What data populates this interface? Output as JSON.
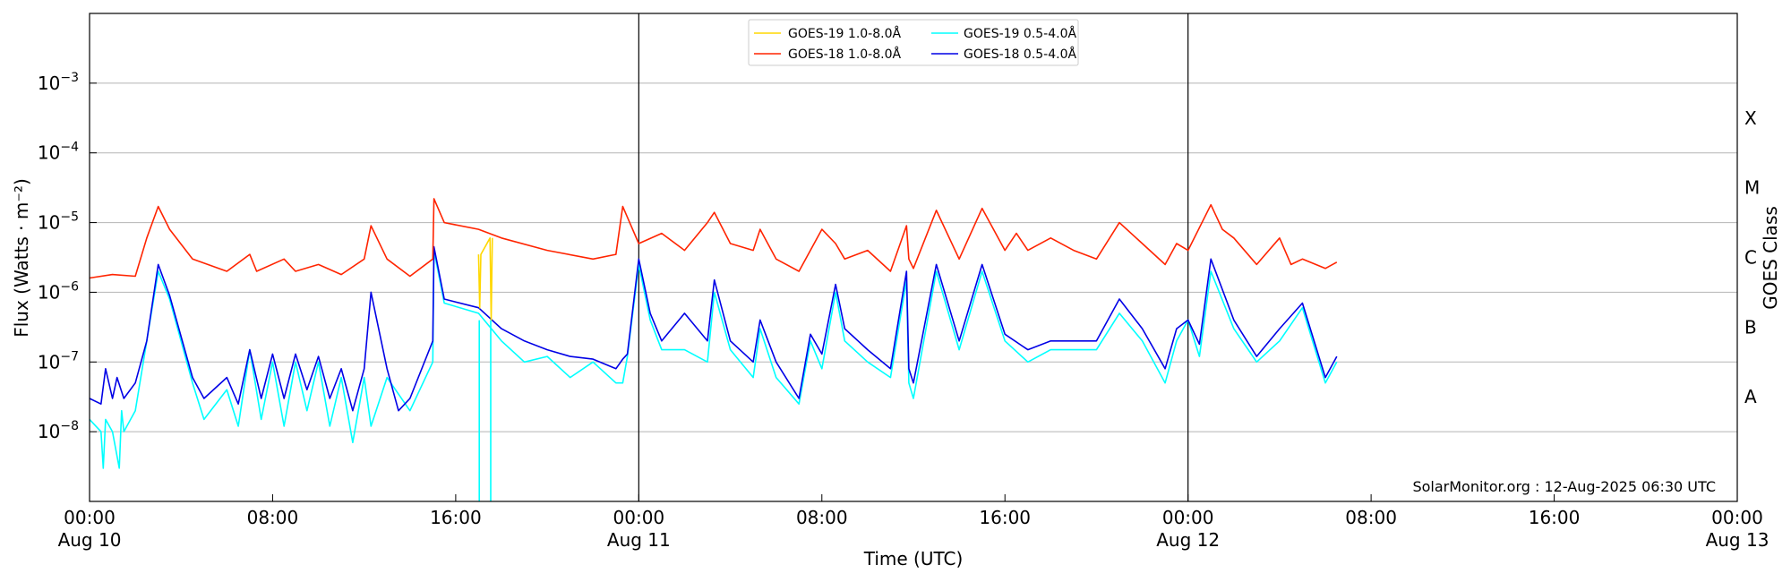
{
  "chart_data": {
    "type": "line",
    "title": "",
    "xlabel": "Time (UTC)",
    "ylabel": "Flux (Watts · m⁻²)",
    "y2label": "GOES Class",
    "yscale": "log",
    "ylim_log10": [
      -9,
      -2
    ],
    "xlim_hours": [
      0,
      72
    ],
    "x_unit": "hours since Aug 10 00:00 UTC",
    "x_ticks": [
      {
        "hour": 0,
        "time": "00:00",
        "date": "Aug 10"
      },
      {
        "hour": 8,
        "time": "08:00",
        "date": ""
      },
      {
        "hour": 16,
        "time": "16:00",
        "date": ""
      },
      {
        "hour": 24,
        "time": "00:00",
        "date": "Aug 11"
      },
      {
        "hour": 32,
        "time": "08:00",
        "date": ""
      },
      {
        "hour": 40,
        "time": "16:00",
        "date": ""
      },
      {
        "hour": 48,
        "time": "00:00",
        "date": "Aug 12"
      },
      {
        "hour": 56,
        "time": "08:00",
        "date": ""
      },
      {
        "hour": 64,
        "time": "16:00",
        "date": ""
      },
      {
        "hour": 72,
        "time": "00:00",
        "date": "Aug 13"
      }
    ],
    "y_ticks": [
      {
        "exp": -8,
        "label": "10",
        "sup": "−8"
      },
      {
        "exp": -7,
        "label": "10",
        "sup": "−7"
      },
      {
        "exp": -6,
        "label": "10",
        "sup": "−6"
      },
      {
        "exp": -5,
        "label": "10",
        "sup": "−5"
      },
      {
        "exp": -4,
        "label": "10",
        "sup": "−4"
      },
      {
        "exp": -3,
        "label": "10",
        "sup": "−3"
      }
    ],
    "class_ticks": [
      {
        "label": "A",
        "exp": -7.5
      },
      {
        "label": "B",
        "exp": -6.5
      },
      {
        "label": "C",
        "exp": -5.5
      },
      {
        "label": "M",
        "exp": -4.5
      },
      {
        "label": "X",
        "exp": -3.5
      }
    ],
    "day_lines_hours": [
      24,
      48
    ],
    "legend": {
      "position": "top-center"
    },
    "series": [
      {
        "name": "GOES-19 1.0-8.0Å",
        "color": "#FFD700",
        "x": [
          17.0,
          17.05,
          17.1,
          17.5,
          17.55,
          17.6
        ],
        "y": [
          3.5e-06,
          6e-07,
          3.5e-06,
          6e-06,
          4e-07,
          6e-06
        ]
      },
      {
        "name": "GOES-18 1.0-8.0Å",
        "color": "#FF2400",
        "x": [
          0.0,
          1.0,
          2.0,
          2.5,
          3.0,
          3.5,
          4.5,
          6.0,
          7.0,
          7.3,
          8.5,
          9.0,
          10.0,
          11.0,
          12.0,
          12.3,
          13.0,
          14.0,
          15.0,
          15.05,
          15.5,
          17.0,
          18.0,
          20.0,
          22.0,
          23.0,
          23.3,
          24.0,
          25.0,
          26.0,
          27.0,
          27.3,
          28.0,
          29.0,
          29.3,
          30.0,
          31.0,
          32.0,
          32.6,
          33.0,
          34.0,
          35.0,
          35.7,
          35.8,
          36.0,
          37.0,
          38.0,
          39.0,
          40.0,
          40.5,
          41.0,
          42.0,
          43.0,
          44.0,
          45.0,
          46.0,
          47.0,
          47.5,
          48.0,
          49.0,
          49.5,
          50.0,
          51.0,
          52.0,
          52.5,
          53.0,
          54.0,
          54.5
        ],
        "y": [
          1.6e-06,
          1.8e-06,
          1.7e-06,
          6e-06,
          1.7e-05,
          8e-06,
          3e-06,
          2e-06,
          3.5e-06,
          2e-06,
          3e-06,
          2e-06,
          2.5e-06,
          1.8e-06,
          3e-06,
          9e-06,
          3e-06,
          1.7e-06,
          3e-06,
          2.2e-05,
          1e-05,
          8e-06,
          6e-06,
          4e-06,
          3e-06,
          3.5e-06,
          1.7e-05,
          5e-06,
          7e-06,
          4e-06,
          1e-05,
          1.4e-05,
          5e-06,
          4e-06,
          8e-06,
          3e-06,
          2e-06,
          8e-06,
          5e-06,
          3e-06,
          4e-06,
          2e-06,
          9e-06,
          3e-06,
          2.2e-06,
          1.5e-05,
          3e-06,
          1.6e-05,
          4e-06,
          7e-06,
          4e-06,
          6e-06,
          4e-06,
          3e-06,
          1e-05,
          5e-06,
          2.5e-06,
          5e-06,
          4e-06,
          1.8e-05,
          8e-06,
          6e-06,
          2.5e-06,
          6e-06,
          2.5e-06,
          3e-06,
          2.2e-06,
          2.7e-06
        ]
      },
      {
        "name": "GOES-19 0.5-4.0Å",
        "color": "#00FFFF",
        "x": [
          0.0,
          0.5,
          0.6,
          0.7,
          1.0,
          1.3,
          1.4,
          1.5,
          2.0,
          2.5,
          3.0,
          3.5,
          4.5,
          5.0,
          6.0,
          6.5,
          7.0,
          7.5,
          8.0,
          8.5,
          9.0,
          9.5,
          10.0,
          10.5,
          11.0,
          11.5,
          12.0,
          12.3,
          13.0,
          14.0,
          15.0,
          15.05,
          15.5,
          17.0,
          18.0,
          19.0,
          20.0,
          21.0,
          22.0,
          23.0,
          23.3,
          23.5,
          24.0,
          24.5,
          25.0,
          26.0,
          27.0,
          27.3,
          28.0,
          29.0,
          29.3,
          30.0,
          31.0,
          31.5,
          32.0,
          32.6,
          33.0,
          34.0,
          35.0,
          35.7,
          35.8,
          36.0,
          37.0,
          38.0,
          39.0,
          40.0,
          41.0,
          42.0,
          43.0,
          44.0,
          45.0,
          46.0,
          47.0,
          47.5,
          48.0,
          48.5,
          49.0,
          50.0,
          51.0,
          52.0,
          53.0,
          54.0,
          54.5
        ],
        "y": [
          1.5e-08,
          1e-08,
          3e-09,
          1.5e-08,
          1e-08,
          3e-09,
          2e-08,
          1e-08,
          2e-08,
          2e-07,
          2e-06,
          8e-07,
          5e-08,
          1.5e-08,
          4e-08,
          1.2e-08,
          1.5e-07,
          1.5e-08,
          1e-07,
          1.2e-08,
          1e-07,
          2e-08,
          1e-07,
          1.2e-08,
          6e-08,
          7e-09,
          6e-08,
          1.2e-08,
          6e-08,
          2e-08,
          1e-07,
          4e-06,
          7e-07,
          5e-07,
          2e-07,
          1e-07,
          1.2e-07,
          6e-08,
          1e-07,
          5e-08,
          5e-08,
          1.2e-07,
          2.5e-06,
          4e-07,
          1.5e-07,
          1.5e-07,
          1e-07,
          1e-06,
          1.5e-07,
          6e-08,
          3e-07,
          6e-08,
          2.5e-08,
          2e-07,
          8e-08,
          1e-06,
          2e-07,
          1e-07,
          6e-08,
          1.5e-06,
          5e-08,
          3e-08,
          2e-06,
          1.5e-07,
          2e-06,
          2e-07,
          1e-07,
          1.5e-07,
          1.5e-07,
          1.5e-07,
          5e-07,
          2e-07,
          5e-08,
          2e-07,
          4e-07,
          1.2e-07,
          2e-06,
          3e-07,
          1e-07,
          2e-07,
          6e-07,
          5e-08,
          1e-07
        ]
      },
      {
        "name": "GOES-18 0.5-4.0Å",
        "color": "#0000E6",
        "x": [
          0.0,
          0.5,
          0.7,
          1.0,
          1.2,
          1.5,
          2.0,
          2.5,
          3.0,
          3.5,
          4.5,
          5.0,
          6.0,
          6.5,
          7.0,
          7.5,
          8.0,
          8.5,
          9.0,
          9.5,
          10.0,
          10.5,
          11.0,
          11.5,
          12.0,
          12.3,
          13.0,
          13.5,
          14.0,
          15.0,
          15.05,
          15.5,
          17.0,
          18.0,
          19.0,
          20.0,
          21.0,
          22.0,
          23.0,
          23.3,
          23.5,
          24.0,
          24.5,
          25.0,
          26.0,
          27.0,
          27.3,
          28.0,
          29.0,
          29.3,
          30.0,
          31.0,
          31.5,
          32.0,
          32.6,
          33.0,
          34.0,
          35.0,
          35.7,
          35.8,
          36.0,
          37.0,
          38.0,
          39.0,
          40.0,
          41.0,
          42.0,
          43.0,
          44.0,
          45.0,
          46.0,
          47.0,
          47.5,
          48.0,
          48.5,
          49.0,
          50.0,
          51.0,
          52.0,
          53.0,
          54.0,
          54.5
        ],
        "y": [
          3e-08,
          2.5e-08,
          8e-08,
          3e-08,
          6e-08,
          3e-08,
          5e-08,
          2e-07,
          2.5e-06,
          9e-07,
          6e-08,
          3e-08,
          6e-08,
          2.5e-08,
          1.5e-07,
          3e-08,
          1.3e-07,
          3e-08,
          1.3e-07,
          4e-08,
          1.2e-07,
          3e-08,
          8e-08,
          2e-08,
          8e-08,
          1e-06,
          8e-08,
          2e-08,
          3e-08,
          2e-07,
          4.5e-06,
          8e-07,
          6e-07,
          3e-07,
          2e-07,
          1.5e-07,
          1.2e-07,
          1.1e-07,
          8e-08,
          1.1e-07,
          1.3e-07,
          3e-06,
          5e-07,
          2e-07,
          5e-07,
          2e-07,
          1.5e-06,
          2e-07,
          1e-07,
          4e-07,
          1e-07,
          3e-08,
          2.5e-07,
          1.3e-07,
          1.3e-06,
          3e-07,
          1.5e-07,
          8e-08,
          2e-06,
          8e-08,
          5e-08,
          2.5e-06,
          2e-07,
          2.5e-06,
          2.5e-07,
          1.5e-07,
          2e-07,
          2e-07,
          2e-07,
          8e-07,
          3e-07,
          8e-08,
          3e-07,
          4e-07,
          1.8e-07,
          3e-06,
          4e-07,
          1.2e-07,
          3e-07,
          7e-07,
          6e-08,
          1.2e-07
        ]
      }
    ],
    "annotation": "SolarMonitor.org : 12-Aug-2025 06:30 UTC"
  }
}
